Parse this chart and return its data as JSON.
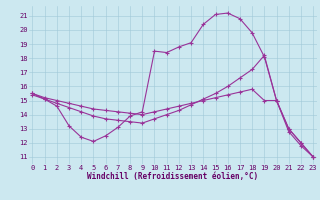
{
  "bg_color": "#cce8f0",
  "grid_color": "#a0c8d8",
  "line_color": "#993399",
  "marker": "+",
  "marker_size": 3,
  "marker_lw": 0.8,
  "line_width": 0.8,
  "xlim": [
    -0.3,
    23.3
  ],
  "ylim": [
    10.5,
    21.7
  ],
  "yticks": [
    11,
    12,
    13,
    14,
    15,
    16,
    17,
    18,
    19,
    20,
    21
  ],
  "xticks": [
    0,
    1,
    2,
    3,
    4,
    5,
    6,
    7,
    8,
    9,
    10,
    11,
    12,
    13,
    14,
    15,
    16,
    17,
    18,
    19,
    20,
    21,
    22,
    23
  ],
  "xlabel": "Windchill (Refroidissement éolien,°C)",
  "xlabel_color": "#660066",
  "xlabel_fontsize": 5.5,
  "tick_fontsize": 5.0,
  "tick_color": "#660066",
  "line1_x": [
    0,
    1,
    2,
    3,
    4,
    5,
    6,
    7,
    8,
    9,
    10,
    11,
    12,
    13,
    14,
    15,
    16,
    17,
    18,
    19,
    20,
    21,
    22,
    23
  ],
  "line1_y": [
    15.5,
    15.1,
    14.6,
    13.2,
    12.4,
    12.1,
    12.5,
    13.1,
    13.9,
    14.2,
    18.5,
    18.4,
    18.8,
    19.1,
    20.4,
    21.1,
    21.2,
    20.8,
    19.8,
    18.1,
    15.0,
    12.8,
    11.8,
    11.0
  ],
  "line2_x": [
    0,
    1,
    2,
    3,
    4,
    5,
    6,
    7,
    8,
    9,
    10,
    11,
    12,
    13,
    14,
    15,
    16,
    17,
    18,
    19,
    20,
    21,
    22,
    23
  ],
  "line2_y": [
    15.5,
    15.2,
    15.0,
    14.8,
    14.6,
    14.4,
    14.3,
    14.2,
    14.1,
    14.0,
    14.2,
    14.4,
    14.6,
    14.8,
    15.0,
    15.2,
    15.4,
    15.6,
    15.8,
    15.0,
    15.0,
    13.0,
    12.0,
    11.0
  ],
  "line3_x": [
    0,
    1,
    2,
    3,
    4,
    5,
    6,
    7,
    8,
    9,
    10,
    11,
    12,
    13,
    14,
    15,
    16,
    17,
    18,
    19,
    20,
    21,
    22,
    23
  ],
  "line3_y": [
    15.4,
    15.1,
    14.8,
    14.5,
    14.2,
    13.9,
    13.7,
    13.6,
    13.5,
    13.4,
    13.7,
    14.0,
    14.3,
    14.7,
    15.1,
    15.5,
    16.0,
    16.6,
    17.2,
    18.2,
    15.0,
    13.0,
    12.0,
    11.0
  ]
}
